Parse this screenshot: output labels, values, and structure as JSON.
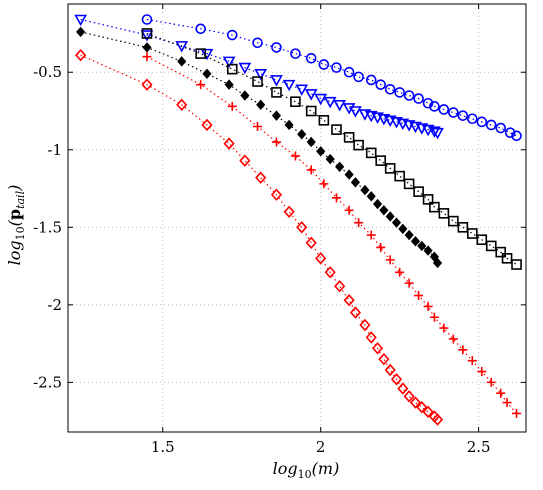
{
  "chart_data": {
    "type": "scatter",
    "xlabel": "log10(m)",
    "ylabel": "log10(ptail)",
    "xlim": [
      1.2,
      2.65
    ],
    "ylim": [
      -2.82,
      -0.06
    ],
    "xticks": [
      1.5,
      2,
      2.5
    ],
    "xtick_labels": [
      "1.5",
      "2",
      "2.5"
    ],
    "yticks": [
      -0.5,
      -1,
      -1.5,
      -2,
      -2.5
    ],
    "ytick_labels": [
      "-0.5",
      "-1",
      "-1.5",
      "-2",
      "-2.5"
    ],
    "grid": true,
    "series": [
      {
        "marker": "circle",
        "color": "#0000ff",
        "x": [
          1.45,
          1.62,
          1.72,
          1.8,
          1.86,
          1.92,
          1.97,
          2.01,
          2.05,
          2.09,
          2.12,
          2.16,
          2.19,
          2.22,
          2.25,
          2.28,
          2.31,
          2.34,
          2.36,
          2.39,
          2.42,
          2.45,
          2.48,
          2.51,
          2.54,
          2.57,
          2.6,
          2.62
        ],
        "y": [
          -0.16,
          -0.22,
          -0.26,
          -0.31,
          -0.34,
          -0.38,
          -0.41,
          -0.45,
          -0.47,
          -0.5,
          -0.53,
          -0.55,
          -0.58,
          -0.61,
          -0.63,
          -0.65,
          -0.67,
          -0.7,
          -0.72,
          -0.74,
          -0.76,
          -0.78,
          -0.8,
          -0.82,
          -0.84,
          -0.86,
          -0.89,
          -0.91
        ]
      },
      {
        "marker": "triangle-down",
        "color": "#0000ff",
        "x": [
          1.24,
          1.45,
          1.56,
          1.64,
          1.71,
          1.76,
          1.81,
          1.86,
          1.9,
          1.94,
          1.97,
          2.0,
          2.03,
          2.06,
          2.09,
          2.11,
          2.14,
          2.16,
          2.18,
          2.2,
          2.22,
          2.24,
          2.26,
          2.28,
          2.3,
          2.32,
          2.34,
          2.36,
          2.37
        ],
        "y": [
          -0.16,
          -0.26,
          -0.33,
          -0.38,
          -0.43,
          -0.47,
          -0.51,
          -0.55,
          -0.58,
          -0.61,
          -0.64,
          -0.67,
          -0.69,
          -0.71,
          -0.73,
          -0.75,
          -0.77,
          -0.78,
          -0.79,
          -0.8,
          -0.81,
          -0.82,
          -0.83,
          -0.84,
          -0.85,
          -0.86,
          -0.87,
          -0.88,
          -0.89
        ]
      },
      {
        "marker": "square",
        "color": "#000000",
        "x": [
          1.45,
          1.62,
          1.72,
          1.8,
          1.86,
          1.92,
          1.97,
          2.01,
          2.05,
          2.09,
          2.12,
          2.16,
          2.19,
          2.22,
          2.25,
          2.28,
          2.31,
          2.34,
          2.36,
          2.39,
          2.42,
          2.45,
          2.48,
          2.51,
          2.54,
          2.57,
          2.59,
          2.62
        ],
        "y": [
          -0.25,
          -0.38,
          -0.48,
          -0.56,
          -0.63,
          -0.69,
          -0.75,
          -0.81,
          -0.87,
          -0.92,
          -0.97,
          -1.02,
          -1.07,
          -1.12,
          -1.17,
          -1.22,
          -1.27,
          -1.32,
          -1.37,
          -1.41,
          -1.46,
          -1.5,
          -1.54,
          -1.58,
          -1.62,
          -1.66,
          -1.7,
          -1.74
        ]
      },
      {
        "marker": "diamond-filled",
        "color": "#000000",
        "x": [
          1.24,
          1.45,
          1.56,
          1.64,
          1.71,
          1.76,
          1.81,
          1.86,
          1.9,
          1.94,
          1.97,
          2.0,
          2.03,
          2.06,
          2.09,
          2.11,
          2.14,
          2.16,
          2.18,
          2.2,
          2.22,
          2.24,
          2.26,
          2.28,
          2.3,
          2.32,
          2.34,
          2.36,
          2.37
        ],
        "y": [
          -0.24,
          -0.34,
          -0.43,
          -0.51,
          -0.58,
          -0.65,
          -0.71,
          -0.78,
          -0.84,
          -0.9,
          -0.95,
          -1.01,
          -1.06,
          -1.11,
          -1.16,
          -1.21,
          -1.26,
          -1.3,
          -1.35,
          -1.39,
          -1.43,
          -1.47,
          -1.51,
          -1.55,
          -1.59,
          -1.62,
          -1.65,
          -1.69,
          -1.73
        ]
      },
      {
        "marker": "plus",
        "color": "#ff0000",
        "x": [
          1.45,
          1.62,
          1.72,
          1.8,
          1.86,
          1.92,
          1.97,
          2.01,
          2.05,
          2.09,
          2.12,
          2.16,
          2.19,
          2.22,
          2.25,
          2.28,
          2.31,
          2.34,
          2.36,
          2.39,
          2.42,
          2.45,
          2.48,
          2.51,
          2.54,
          2.57,
          2.59,
          2.62
        ],
        "y": [
          -0.4,
          -0.58,
          -0.72,
          -0.85,
          -0.95,
          -1.04,
          -1.13,
          -1.22,
          -1.31,
          -1.39,
          -1.47,
          -1.55,
          -1.63,
          -1.71,
          -1.79,
          -1.86,
          -1.94,
          -2.01,
          -2.08,
          -2.15,
          -2.22,
          -2.29,
          -2.36,
          -2.43,
          -2.5,
          -2.57,
          -2.63,
          -2.7
        ]
      },
      {
        "marker": "diamond",
        "color": "#ff0000",
        "x": [
          1.24,
          1.45,
          1.56,
          1.64,
          1.71,
          1.76,
          1.81,
          1.86,
          1.9,
          1.94,
          1.97,
          2.0,
          2.03,
          2.06,
          2.09,
          2.11,
          2.14,
          2.16,
          2.18,
          2.2,
          2.22,
          2.24,
          2.26,
          2.28,
          2.3,
          2.32,
          2.34,
          2.36,
          2.37
        ],
        "y": [
          -0.39,
          -0.58,
          -0.71,
          -0.84,
          -0.96,
          -1.07,
          -1.18,
          -1.29,
          -1.4,
          -1.5,
          -1.6,
          -1.7,
          -1.79,
          -1.88,
          -1.97,
          -2.05,
          -2.13,
          -2.21,
          -2.28,
          -2.35,
          -2.42,
          -2.48,
          -2.54,
          -2.59,
          -2.63,
          -2.66,
          -2.69,
          -2.72,
          -2.74
        ]
      }
    ]
  }
}
